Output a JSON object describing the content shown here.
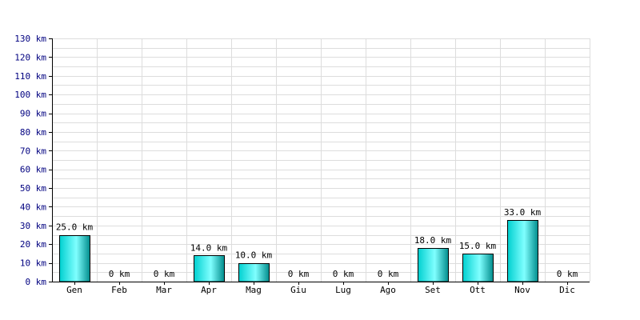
{
  "chart_data": {
    "type": "bar",
    "categories": [
      "Gen",
      "Feb",
      "Mar",
      "Apr",
      "Mag",
      "Giu",
      "Lug",
      "Ago",
      "Set",
      "Ott",
      "Nov",
      "Dic"
    ],
    "values": [
      25.0,
      0,
      0,
      14.0,
      10.0,
      0,
      0,
      0,
      18.0,
      15.0,
      33.0,
      0
    ],
    "value_labels": [
      "25.0 km",
      "0 km",
      "0 km",
      "14.0 km",
      "10.0 km",
      "0 km",
      "0 km",
      "0 km",
      "18.0 km",
      "15.0 km",
      "33.0 km",
      "0 km"
    ],
    "y_tick_labels": [
      "0 km",
      "10 km",
      "20 km",
      "30 km",
      "40 km",
      "50 km",
      "60 km",
      "70 km",
      "80 km",
      "90 km",
      "100 km",
      "110 km",
      "120 km",
      "130 km"
    ],
    "y_ticks": [
      0,
      10,
      20,
      30,
      40,
      50,
      60,
      70,
      80,
      90,
      100,
      110,
      120,
      130
    ],
    "minor_step": 5,
    "ylim": [
      0,
      130
    ],
    "title": "",
    "xlabel": "",
    "ylabel": "",
    "grid": true,
    "legend": "none"
  },
  "colors": {
    "bar_edge": "#00d0d0",
    "bar_center": "#80ffff",
    "bar_dark": "#008c8c",
    "bar_border": "#000000",
    "grid": "#dddddd",
    "axis": "#000000",
    "y_tick_text": "#000080",
    "x_tick_text": "#000000"
  }
}
